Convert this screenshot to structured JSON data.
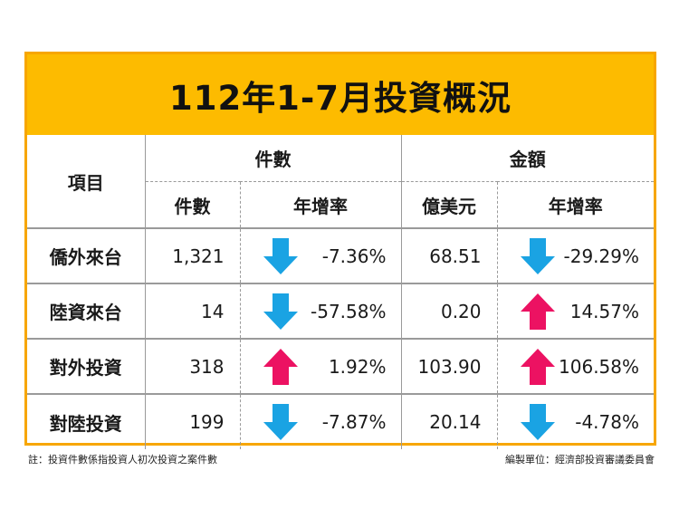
{
  "title": "112年1-7月投資概況",
  "colors": {
    "border": "#f7a600",
    "title_bg": "#fdbb00",
    "down_arrow": "#1aa3e3",
    "up_arrow": "#ec1262"
  },
  "headers": {
    "item": "項目",
    "group_count": "件數",
    "group_amount": "金額",
    "sub_count": "件數",
    "sub_count_rate": "年增率",
    "sub_amount": "億美元",
    "sub_amount_rate": "年增率"
  },
  "rows": [
    {
      "item": "僑外來台",
      "count": "1,321",
      "count_rate": "-7.36%",
      "count_dir": "down",
      "amount": "68.51",
      "amount_rate": "-29.29%",
      "amount_dir": "down"
    },
    {
      "item": "陸資來台",
      "count": "14",
      "count_rate": "-57.58%",
      "count_dir": "down",
      "amount": "0.20",
      "amount_rate": "14.57%",
      "amount_dir": "up"
    },
    {
      "item": "對外投資",
      "count": "318",
      "count_rate": "1.92%",
      "count_dir": "up",
      "amount": "103.90",
      "amount_rate": "106.58%",
      "amount_dir": "up"
    },
    {
      "item": "對陸投資",
      "count": "199",
      "count_rate": "-7.87%",
      "count_dir": "down",
      "amount": "20.14",
      "amount_rate": "-4.78%",
      "amount_dir": "down"
    }
  ],
  "footnote_left": "註：投資件數係指投資人初次投資之案件數",
  "footnote_right": "編製單位：經濟部投資審議委員會"
}
